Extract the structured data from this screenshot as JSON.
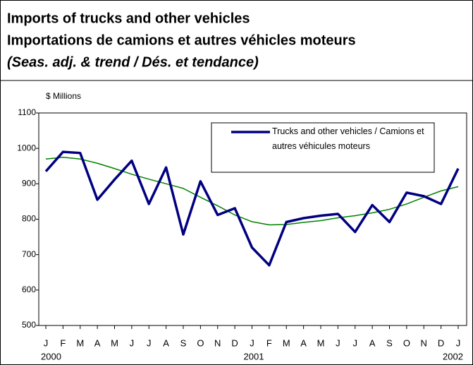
{
  "chart_data": {
    "type": "line",
    "title": "Imports of trucks and other vehicles",
    "title_fr": "Importations de camions et autres véhicles moteurs",
    "subtitle": "(Seas. adj. & trend / Dés. et tendance)",
    "y_label": "$ Millions",
    "categories": [
      "J",
      "F",
      "M",
      "A",
      "M",
      "J",
      "J",
      "A",
      "S",
      "O",
      "N",
      "D",
      "J",
      "F",
      "M",
      "A",
      "M",
      "J",
      "J",
      "A",
      "S",
      "O",
      "N",
      "D",
      "J"
    ],
    "category_groups": [
      "2000",
      "2001",
      "2002"
    ],
    "series": [
      {
        "name": "Trucks and other vehicles / Camions et autres véhicules moteurs",
        "color": "#000080",
        "values": [
          935,
          990,
          987,
          855,
          912,
          965,
          843,
          946,
          757,
          907,
          812,
          831,
          720,
          670,
          792,
          803,
          810,
          815,
          764,
          840,
          792,
          875,
          865,
          843,
          943
        ]
      },
      {
        "color": "#008000",
        "values": [
          970,
          975,
          970,
          958,
          943,
          927,
          913,
          900,
          887,
          862,
          838,
          812,
          793,
          784,
          785,
          791,
          796,
          804,
          810,
          818,
          828,
          843,
          862,
          880,
          892
        ]
      }
    ],
    "ylim": [
      500,
      1100
    ],
    "yticks": [
      500,
      600,
      700,
      800,
      900,
      1000,
      1100
    ],
    "grid": false
  }
}
